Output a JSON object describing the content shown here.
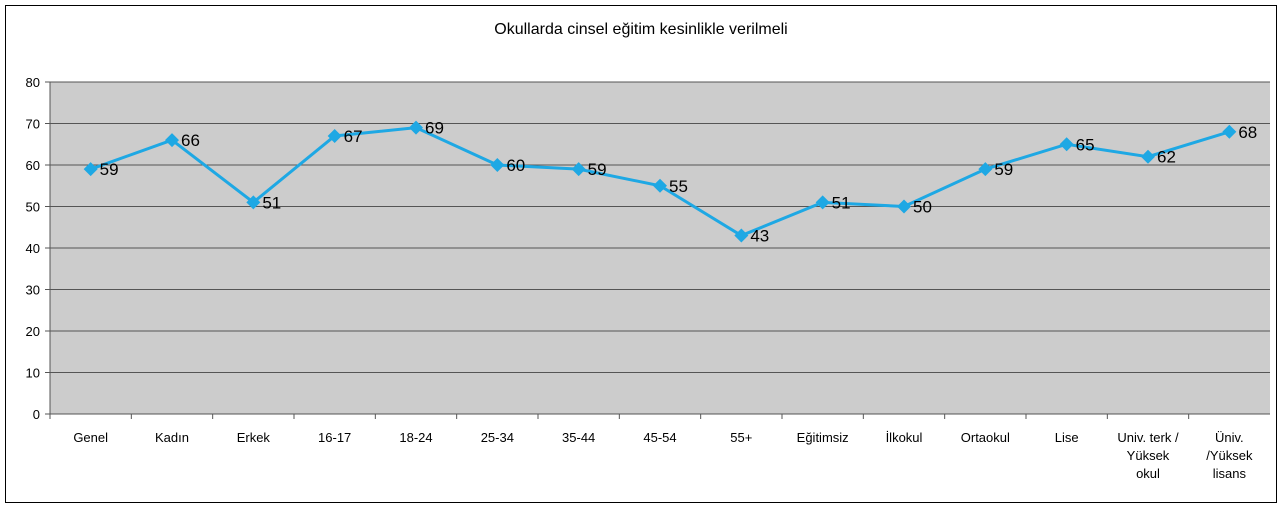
{
  "chart_data": {
    "type": "line",
    "title": "Okullarda cinsel eğitim kesinlikle verilmeli",
    "categories": [
      "Genel",
      "Kadın",
      "Erkek",
      "16-17",
      "18-24",
      "25-34",
      "35-44",
      "45-54",
      "55+",
      "Eğitimsiz",
      "İlkokul",
      "Ortaokul",
      "Lise",
      "Univ. terk /\nYüksek\nokul",
      "Üniv.\n/Yüksek\nlisans"
    ],
    "values": [
      59,
      66,
      51,
      67,
      69,
      60,
      59,
      55,
      43,
      51,
      50,
      59,
      65,
      62,
      68
    ],
    "color": "#1ea8e4",
    "ylim": [
      0,
      80
    ],
    "yticks": [
      0,
      10,
      20,
      30,
      40,
      50,
      60,
      70,
      80
    ],
    "grid": true
  }
}
